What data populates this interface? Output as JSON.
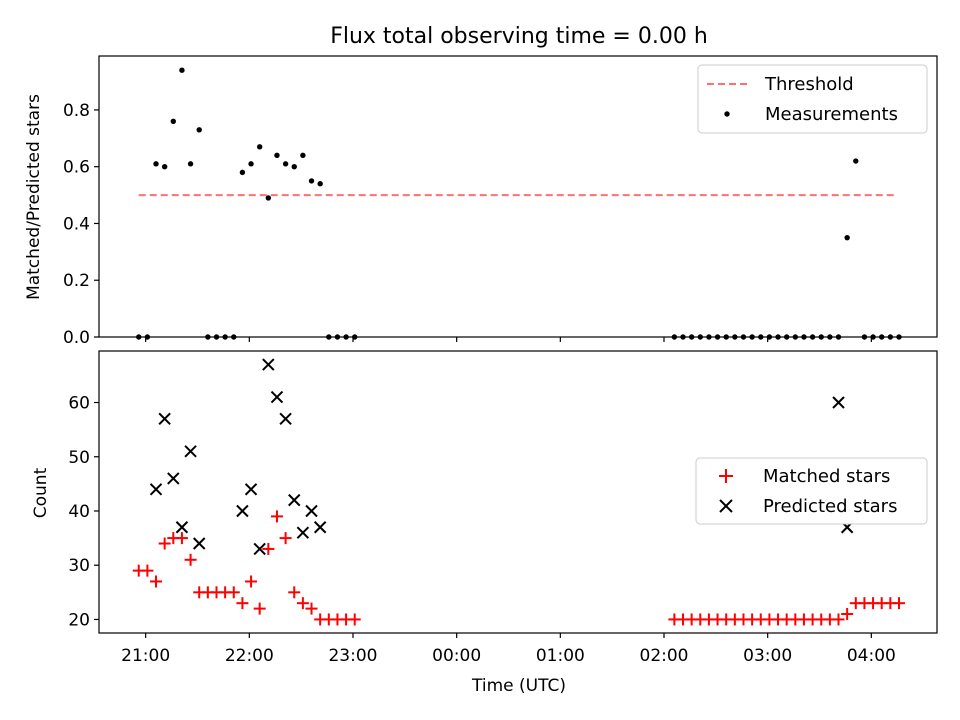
{
  "title": "Flux total observing time = 0.00 h",
  "chart_data": [
    {
      "type": "scatter",
      "ylabel": "Matched/Predicted stars",
      "xlim": [
        "20:33",
        "04:38"
      ],
      "ylim": [
        0,
        0.99
      ],
      "yticks": [
        "0.0",
        "0.2",
        "0.4",
        "0.6",
        "0.8"
      ],
      "ytick_values": [
        0,
        0.2,
        0.4,
        0.6,
        0.8
      ],
      "legend_position": "top-right",
      "threshold": {
        "name": "Threshold",
        "value": 0.5,
        "x_range": [
          "20:56",
          "04:13"
        ],
        "color": "#ff7070",
        "style": "dashed"
      },
      "series": [
        {
          "name": "Measurements",
          "color": "#000000",
          "marker": "dot",
          "x": [
            "20:56",
            "21:01",
            "21:06",
            "21:11",
            "21:16",
            "21:21",
            "21:26",
            "21:31",
            "21:36",
            "21:41",
            "21:46",
            "21:51",
            "21:56",
            "22:01",
            "22:06",
            "22:11",
            "22:16",
            "22:21",
            "22:26",
            "22:31",
            "22:36",
            "22:41",
            "22:46",
            "22:51",
            "22:56",
            "23:01",
            "02:06",
            "02:11",
            "02:16",
            "02:21",
            "02:26",
            "02:31",
            "02:36",
            "02:41",
            "02:46",
            "02:51",
            "02:56",
            "03:01",
            "03:06",
            "03:11",
            "03:16",
            "03:21",
            "03:26",
            "03:31",
            "03:36",
            "03:41",
            "03:46",
            "03:51",
            "03:56",
            "04:01",
            "04:06",
            "04:11",
            "04:16"
          ],
          "y": [
            0,
            0,
            0.61,
            0.6,
            0.76,
            0.94,
            0.61,
            0.73,
            0,
            0,
            0,
            0,
            0.58,
            0.61,
            0.67,
            0.49,
            0.64,
            0.61,
            0.6,
            0.64,
            0.55,
            0.54,
            0,
            0,
            0,
            0,
            0,
            0,
            0,
            0,
            0,
            0,
            0,
            0,
            0,
            0,
            0,
            0,
            0,
            0,
            0,
            0,
            0,
            0,
            0,
            0,
            0.35,
            0.62,
            0,
            0,
            0,
            0,
            0
          ]
        }
      ]
    },
    {
      "type": "scatter",
      "xlabel": "Time (UTC)",
      "ylabel": "Count",
      "xlim": [
        "20:33",
        "04:38"
      ],
      "ylim": [
        17.5,
        69.5
      ],
      "yticks": [
        "20",
        "30",
        "40",
        "50",
        "60"
      ],
      "ytick_values": [
        20,
        30,
        40,
        50,
        60
      ],
      "xticks": [
        "21:00",
        "22:00",
        "23:00",
        "00:00",
        "01:00",
        "02:00",
        "03:00",
        "04:00"
      ],
      "legend_position": "center-right",
      "series": [
        {
          "name": "Matched stars",
          "color": "#ff0000",
          "marker": "plus",
          "x": [
            "20:56",
            "21:01",
            "21:06",
            "21:11",
            "21:16",
            "21:21",
            "21:26",
            "21:31",
            "21:36",
            "21:41",
            "21:46",
            "21:51",
            "21:56",
            "22:01",
            "22:06",
            "22:11",
            "22:16",
            "22:21",
            "22:26",
            "22:31",
            "22:36",
            "22:41",
            "22:46",
            "22:51",
            "22:56",
            "23:01",
            "02:06",
            "02:11",
            "02:16",
            "02:21",
            "02:26",
            "02:31",
            "02:36",
            "02:41",
            "02:46",
            "02:51",
            "02:56",
            "03:01",
            "03:06",
            "03:11",
            "03:16",
            "03:21",
            "03:26",
            "03:31",
            "03:36",
            "03:41",
            "03:46",
            "03:51",
            "03:56",
            "04:01",
            "04:06",
            "04:11",
            "04:16"
          ],
          "y": [
            29,
            29,
            27,
            34,
            35,
            35,
            31,
            25,
            25,
            25,
            25,
            25,
            23,
            27,
            22,
            33,
            39,
            35,
            25,
            23,
            22,
            20,
            20,
            20,
            20,
            20,
            20,
            20,
            20,
            20,
            20,
            20,
            20,
            20,
            20,
            20,
            20,
            20,
            20,
            20,
            20,
            20,
            20,
            20,
            20,
            20,
            21,
            23,
            23,
            23,
            23,
            23,
            23
          ]
        },
        {
          "name": "Predicted stars",
          "color": "#000000",
          "marker": "x",
          "x": [
            "21:06",
            "21:11",
            "21:16",
            "21:21",
            "21:26",
            "21:31",
            "21:56",
            "22:01",
            "22:06",
            "22:11",
            "22:16",
            "22:21",
            "22:26",
            "22:31",
            "22:36",
            "22:41",
            "03:41",
            "03:46"
          ],
          "y": [
            44,
            57,
            46,
            37,
            51,
            34,
            40,
            44,
            33,
            67,
            61,
            57,
            42,
            36,
            40,
            37,
            60,
            37
          ]
        }
      ]
    }
  ]
}
